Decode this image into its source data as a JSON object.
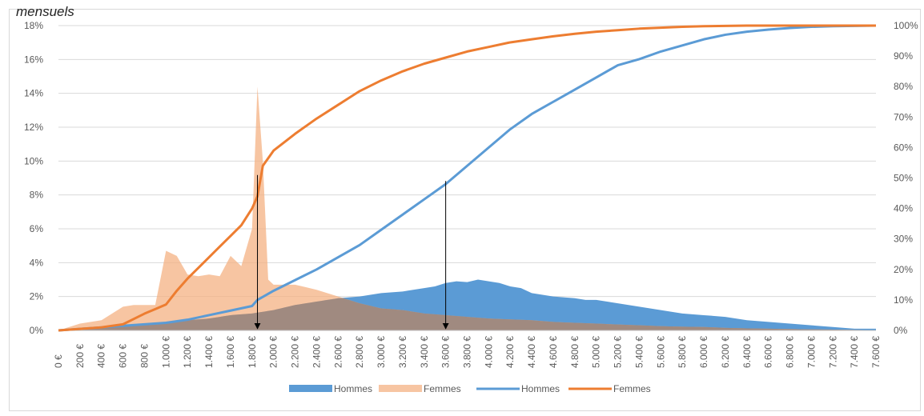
{
  "caption": "mensuels",
  "chart_data": {
    "type": "area",
    "x_ticks": [
      "0 €",
      "200 €",
      "400 €",
      "600 €",
      "800 €",
      "1.000 €",
      "1.200 €",
      "1.400 €",
      "1.600 €",
      "1.800 €",
      "2.000 €",
      "2.200 €",
      "2.400 €",
      "2.600 €",
      "2.800 €",
      "3.000 €",
      "3.200 €",
      "3.400 €",
      "3.600 €",
      "3.800 €",
      "4.000 €",
      "4.200 €",
      "4.400 €",
      "4.600 €",
      "4.800 €",
      "5.000 €",
      "5.200 €",
      "5.400 €",
      "5.600 €",
      "5.800 €",
      "6.000 €",
      "6.200 €",
      "6.400 €",
      "6.600 €",
      "6.800 €",
      "7.000 €",
      "7.200 €",
      "7.400 €",
      "7.600 €"
    ],
    "x_range": [
      0,
      7600
    ],
    "y_left": {
      "ticks": [
        "0%",
        "2%",
        "4%",
        "6%",
        "8%",
        "10%",
        "12%",
        "14%",
        "16%",
        "18%"
      ],
      "range": [
        0,
        18
      ]
    },
    "y_right": {
      "ticks": [
        "0%",
        "10%",
        "20%",
        "30%",
        "40%",
        "50%",
        "60%",
        "70%",
        "80%",
        "90%",
        "100%"
      ],
      "range": [
        0,
        100
      ]
    },
    "grid": true,
    "legend_position": "bottom",
    "series": [
      {
        "name": "Hommes",
        "kind": "area",
        "axis": "left",
        "color": "#5b9bd5",
        "x": [
          0,
          200,
          400,
          600,
          800,
          1000,
          1200,
          1400,
          1600,
          1700,
          1800,
          1900,
          2000,
          2200,
          2400,
          2600,
          2800,
          3000,
          3200,
          3400,
          3500,
          3600,
          3700,
          3800,
          3900,
          4000,
          4100,
          4200,
          4300,
          4400,
          4600,
          4800,
          4900,
          5000,
          5200,
          5400,
          5600,
          5800,
          6000,
          6200,
          6400,
          6600,
          6800,
          7000,
          7200,
          7400,
          7600
        ],
        "values": [
          0,
          0.1,
          0.2,
          0.3,
          0.4,
          0.5,
          0.6,
          0.7,
          0.9,
          0.95,
          1.0,
          1.1,
          1.2,
          1.5,
          1.7,
          1.9,
          2.0,
          2.2,
          2.3,
          2.5,
          2.6,
          2.8,
          2.9,
          2.85,
          3.0,
          2.9,
          2.8,
          2.6,
          2.5,
          2.2,
          2.0,
          1.9,
          1.8,
          1.8,
          1.6,
          1.4,
          1.2,
          1.0,
          0.9,
          0.8,
          0.6,
          0.5,
          0.4,
          0.3,
          0.2,
          0.1,
          0.1
        ]
      },
      {
        "name": "Femmes",
        "kind": "area",
        "axis": "left",
        "color": "#f4b183",
        "x": [
          0,
          200,
          400,
          600,
          700,
          800,
          900,
          1000,
          1100,
          1200,
          1300,
          1400,
          1500,
          1600,
          1700,
          1800,
          1850,
          1900,
          1950,
          2000,
          2200,
          2400,
          2600,
          2800,
          3000,
          3200,
          3400,
          3600,
          3800,
          4000,
          4200,
          4400,
          4600,
          4800,
          5000,
          5200,
          5400,
          5600,
          5800,
          6000,
          6200,
          6400,
          6600,
          6800,
          7000,
          7200,
          7400,
          7600
        ],
        "values": [
          0,
          0.4,
          0.6,
          1.4,
          1.5,
          1.5,
          1.5,
          4.7,
          4.4,
          3.3,
          3.2,
          3.3,
          3.2,
          4.4,
          3.8,
          6.0,
          14.4,
          10.0,
          3.0,
          2.7,
          2.7,
          2.4,
          2.0,
          1.6,
          1.3,
          1.2,
          1.0,
          0.9,
          0.8,
          0.7,
          0.65,
          0.6,
          0.5,
          0.45,
          0.4,
          0.35,
          0.3,
          0.25,
          0.22,
          0.2,
          0.15,
          0.12,
          0.1,
          0.08,
          0.06,
          0.05,
          0.03,
          0.02
        ]
      },
      {
        "name": "Hommes",
        "kind": "line",
        "axis": "right",
        "color": "#5b9bd5",
        "x": [
          0,
          200,
          400,
          600,
          800,
          1000,
          1200,
          1400,
          1600,
          1800,
          1850,
          2000,
          2200,
          2400,
          2600,
          2800,
          3000,
          3200,
          3400,
          3600,
          3800,
          4000,
          4200,
          4400,
          4600,
          4800,
          5000,
          5200,
          5400,
          5600,
          5800,
          6000,
          6200,
          6400,
          6600,
          6800,
          7000,
          7200,
          7400,
          7600
        ],
        "values": [
          0,
          0.5,
          1,
          1.5,
          2,
          2.5,
          3.5,
          5,
          6.5,
          8,
          10,
          13,
          16.5,
          20,
          24,
          28,
          33,
          38,
          43,
          48,
          54,
          60,
          66,
          71,
          75,
          79,
          83,
          87,
          89,
          91.5,
          93.5,
          95.5,
          97,
          98,
          98.7,
          99.2,
          99.6,
          99.8,
          99.9,
          100
        ]
      },
      {
        "name": "Femmes",
        "kind": "line",
        "axis": "right",
        "color": "#ed7d31",
        "x": [
          0,
          200,
          400,
          600,
          800,
          900,
          1000,
          1100,
          1200,
          1300,
          1400,
          1500,
          1600,
          1700,
          1800,
          1850,
          1900,
          2000,
          2200,
          2400,
          2600,
          2800,
          3000,
          3200,
          3400,
          3600,
          3800,
          4000,
          4200,
          4400,
          4600,
          4800,
          5000,
          5200,
          5400,
          5600,
          5800,
          6000,
          6200,
          6400,
          6600,
          6800,
          7000,
          7200,
          7400,
          7600
        ],
        "values": [
          0,
          0.5,
          1,
          2,
          5.5,
          7,
          8.5,
          13,
          17,
          20.5,
          24,
          27.5,
          31,
          34.5,
          40,
          44,
          54,
          59,
          64.5,
          69.5,
          74,
          78.5,
          82,
          85,
          87.5,
          89.5,
          91.5,
          93,
          94.5,
          95.5,
          96.5,
          97.3,
          98,
          98.5,
          99,
          99.3,
          99.6,
          99.8,
          99.9,
          100,
          100,
          100,
          100,
          100,
          100,
          100
        ]
      }
    ],
    "annotations": [
      {
        "kind": "arrow",
        "x": 1850,
        "from_right_value": 51,
        "to": "axis"
      },
      {
        "kind": "arrow",
        "x": 3600,
        "from_right_value": 49,
        "to": "axis"
      }
    ],
    "legend": [
      {
        "label": "Hommes",
        "symbol": "area",
        "color": "#5b9bd5"
      },
      {
        "label": "Femmes",
        "symbol": "area",
        "color": "#f4b183"
      },
      {
        "label": "Hommes",
        "symbol": "line",
        "color": "#5b9bd5"
      },
      {
        "label": "Femmes",
        "symbol": "line",
        "color": "#ed7d31"
      }
    ]
  }
}
